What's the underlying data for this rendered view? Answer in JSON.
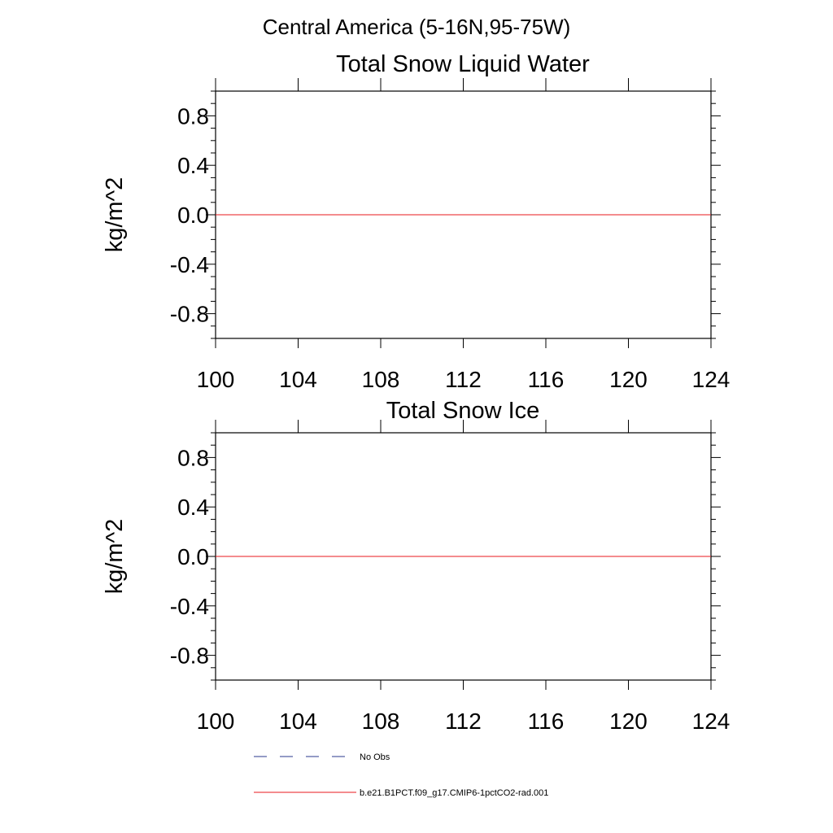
{
  "figure": {
    "suptitle": "Central America (5-16N,95-75W)"
  },
  "colors": {
    "axis": "#000000",
    "model_line": "#e8181e",
    "obs_line": "#2a3a8c",
    "background": "#ffffff"
  },
  "legend": {
    "placement": "bottom",
    "entries": [
      {
        "label": "No Obs",
        "style": "dashed",
        "color": "#2a3a8c"
      },
      {
        "label": "b.e21.B1PCT.f09_g17.CMIP6-1pctCO2-rad.001",
        "style": "solid",
        "color": "#e8181e"
      }
    ]
  },
  "chart_data": [
    {
      "type": "line",
      "title": "Total Snow Liquid Water",
      "xlabel": "",
      "ylabel": "kg/m^2",
      "xlim": [
        100,
        124
      ],
      "ylim": [
        -1,
        1
      ],
      "xticks": [
        100,
        104,
        108,
        112,
        116,
        120,
        124
      ],
      "xtick_labels": [
        "100",
        "104",
        "108",
        "112",
        "116",
        "120",
        "124"
      ],
      "yticks": [
        0.8,
        0.4,
        0.0,
        -0.4,
        -0.8
      ],
      "ytick_labels": [
        "0.8",
        "0.4",
        "0.0",
        "-0.4",
        "-0.8"
      ],
      "grid": false,
      "series": [
        {
          "x": [
            100,
            124
          ],
          "y": [
            0,
            0
          ],
          "color": "#e8181e"
        }
      ]
    },
    {
      "type": "line",
      "title": "Total Snow Ice",
      "xlabel": "",
      "ylabel": "kg/m^2",
      "xlim": [
        100,
        124
      ],
      "ylim": [
        -1,
        1
      ],
      "xticks": [
        100,
        104,
        108,
        112,
        116,
        120,
        124
      ],
      "xtick_labels": [
        "100",
        "104",
        "108",
        "112",
        "116",
        "120",
        "124"
      ],
      "yticks": [
        0.8,
        0.4,
        0.0,
        -0.4,
        -0.8
      ],
      "ytick_labels": [
        "0.8",
        "0.4",
        "0.0",
        "-0.4",
        "-0.8"
      ],
      "grid": false,
      "series": [
        {
          "x": [
            100,
            124
          ],
          "y": [
            0,
            0
          ],
          "color": "#e8181e"
        }
      ]
    }
  ]
}
